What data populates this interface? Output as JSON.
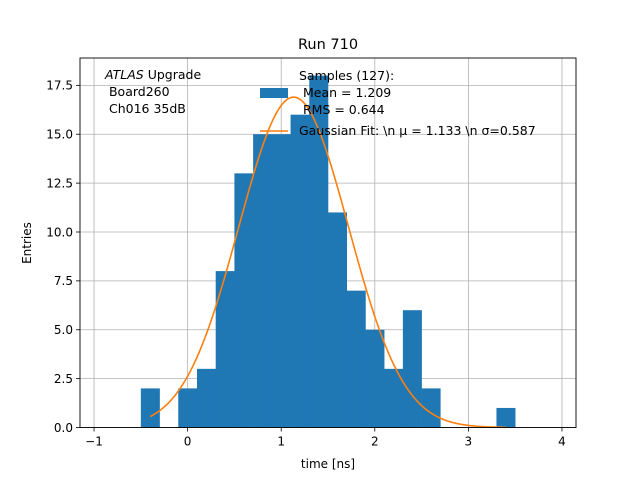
{
  "chart_data": {
    "type": "bar",
    "title": "Run 710",
    "xlabel": "time [ns]",
    "ylabel": "Entries",
    "xlim": [
      -1.15,
      4.15
    ],
    "ylim": [
      0,
      18.9
    ],
    "xticks": [
      -1,
      0,
      1,
      2,
      3,
      4
    ],
    "xtick_labels": [
      "−1",
      "0",
      "1",
      "2",
      "3",
      "4"
    ],
    "yticks": [
      0,
      2.5,
      5,
      7.5,
      10,
      12.5,
      15,
      17.5
    ],
    "ytick_labels": [
      "0.0",
      "2.5",
      "5.0",
      "7.5",
      "10.0",
      "12.5",
      "15.0",
      "17.5"
    ],
    "grid": true,
    "histogram": {
      "bin_width": 0.2,
      "bins": [
        {
          "x0": -0.5,
          "count": 2
        },
        {
          "x0": -0.1,
          "count": 2
        },
        {
          "x0": 0.1,
          "count": 3
        },
        {
          "x0": 0.3,
          "count": 8
        },
        {
          "x0": 0.5,
          "count": 13
        },
        {
          "x0": 0.7,
          "count": 15
        },
        {
          "x0": 0.9,
          "count": 15
        },
        {
          "x0": 1.1,
          "count": 16
        },
        {
          "x0": 1.3,
          "count": 18
        },
        {
          "x0": 1.5,
          "count": 11
        },
        {
          "x0": 1.7,
          "count": 7
        },
        {
          "x0": 1.9,
          "count": 5
        },
        {
          "x0": 2.1,
          "count": 3
        },
        {
          "x0": 2.3,
          "count": 6
        },
        {
          "x0": 2.5,
          "count": 2
        },
        {
          "x0": 3.3,
          "count": 1
        }
      ],
      "color": "#1f77b4"
    },
    "fit": {
      "amplitude": 16.9,
      "mu": 1.133,
      "sigma": 0.587,
      "x_range": [
        -0.4,
        3.4
      ],
      "color": "#ff7f0e"
    },
    "annotation": {
      "atlas_italic": "ATLAS",
      "atlas_rest": " Upgrade",
      "line2": " Board260",
      "line3": " Ch016 35dB"
    },
    "legend": {
      "placement": "top-right",
      "entries": [
        {
          "kind": "patch",
          "lines": [
            "Samples (127):",
            " Mean = 1.209",
            " RMS = 0.644"
          ]
        },
        {
          "kind": "line",
          "lines": [
            "Gaussian Fit: \\n μ = 1.133 \\n σ=0.587"
          ]
        }
      ]
    }
  }
}
